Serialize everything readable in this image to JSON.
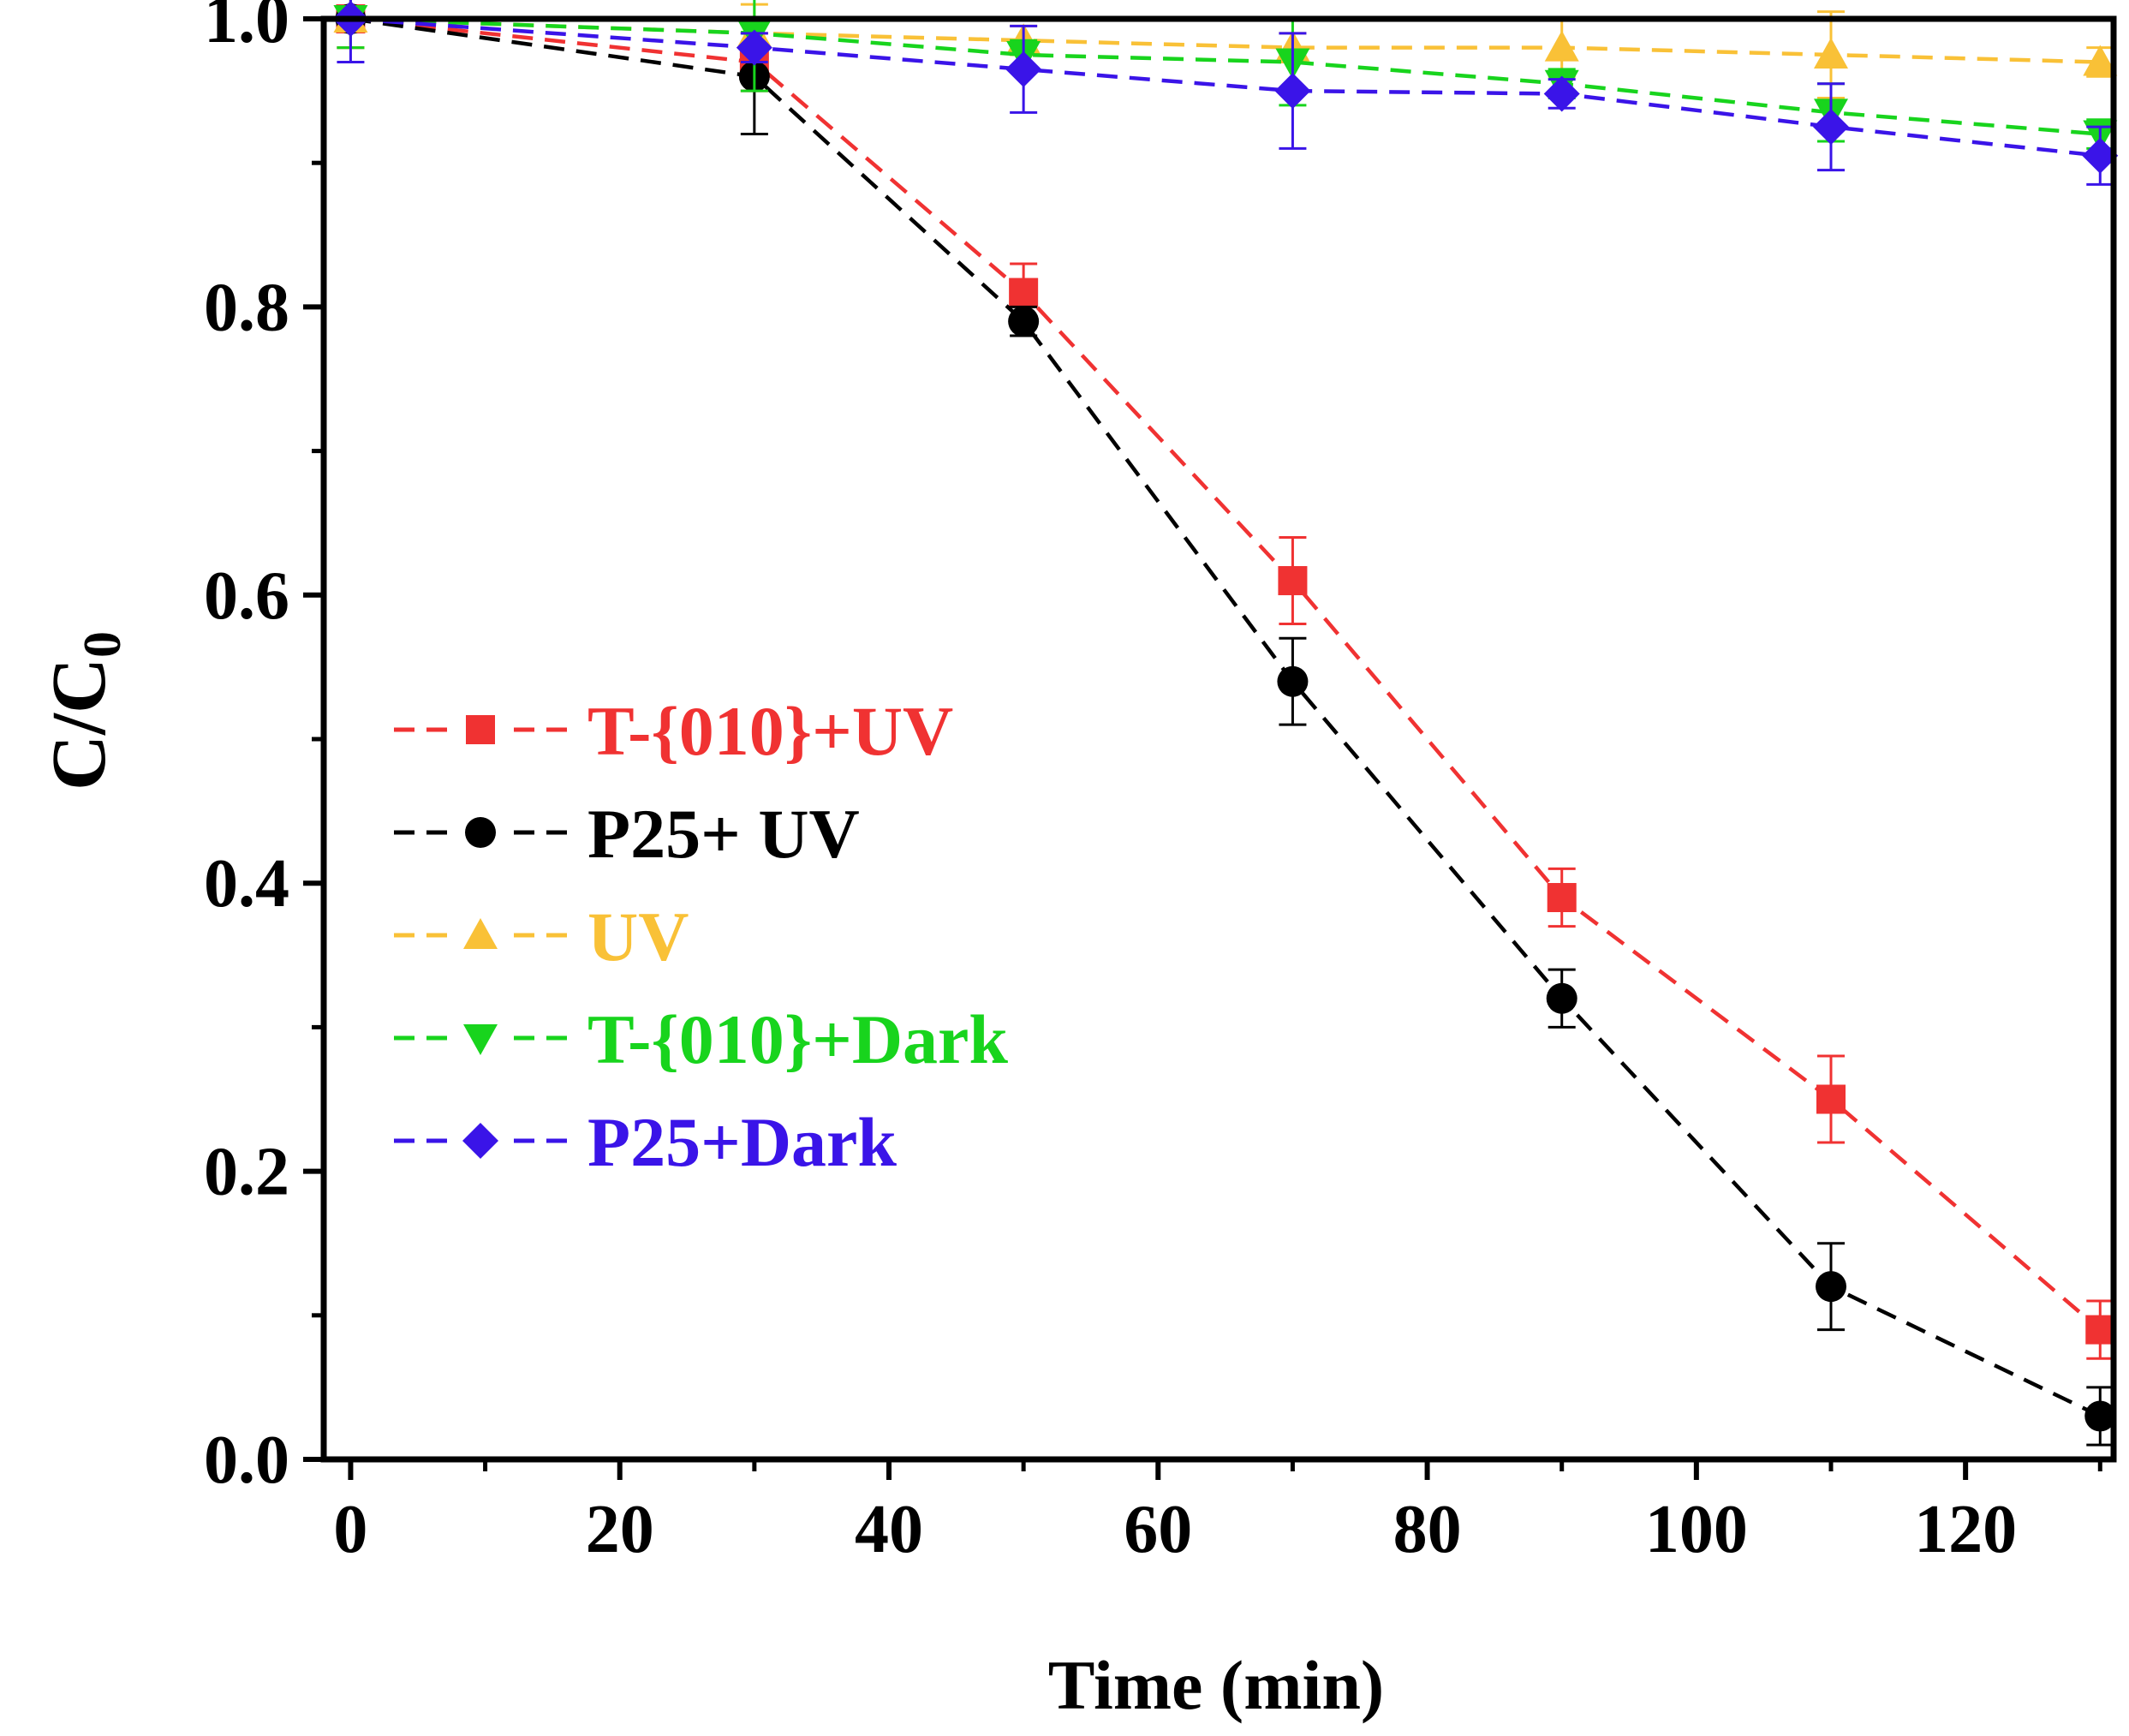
{
  "chart_data": {
    "type": "line",
    "title": "",
    "xlabel": "Time (min)",
    "ylabel_main": "C/C",
    "ylabel_sub": "0",
    "xlim": [
      -2,
      131
    ],
    "ylim": [
      0.0,
      1.0
    ],
    "xticks": [
      0,
      20,
      40,
      60,
      80,
      100,
      120
    ],
    "yticks": [
      0.0,
      0.2,
      0.4,
      0.6,
      0.8,
      1.0
    ],
    "ytick_labels": [
      "0.0",
      "0.2",
      "0.4",
      "0.6",
      "0.8",
      "1.0"
    ],
    "x": [
      0,
      30,
      50,
      70,
      90,
      110,
      130
    ],
    "legend_position": "center-left",
    "series": [
      {
        "name": "T-{010}+UV",
        "color": "#f03232",
        "marker": "square",
        "values": [
          1.0,
          0.97,
          0.81,
          0.61,
          0.39,
          0.25,
          0.09
        ],
        "errors": [
          0.02,
          0.02,
          0.02,
          0.03,
          0.02,
          0.03,
          0.02
        ]
      },
      {
        "name": "P25+ UV",
        "color": "#000000",
        "marker": "circle",
        "values": [
          1.0,
          0.96,
          0.79,
          0.54,
          0.32,
          0.12,
          0.03
        ],
        "errors": [
          0.02,
          0.04,
          0.01,
          0.03,
          0.02,
          0.03,
          0.02
        ]
      },
      {
        "name": "UV",
        "color": "#f9c137",
        "marker": "triangle-up",
        "values": [
          1.0,
          0.99,
          0.985,
          0.98,
          0.98,
          0.975,
          0.97
        ],
        "errors": [
          0.02,
          0.02,
          0.01,
          0.01,
          0.02,
          0.03,
          0.01
        ]
      },
      {
        "name": "T-{010}+Dark",
        "color": "#18d41d",
        "marker": "triangle-down",
        "values": [
          1.0,
          0.99,
          0.975,
          0.97,
          0.955,
          0.935,
          0.92
        ],
        "errors": [
          0.02,
          0.04,
          0.01,
          0.03,
          0.01,
          0.02,
          0.01
        ]
      },
      {
        "name": "P25+Dark",
        "color": "#3a14e8",
        "marker": "diamond",
        "values": [
          1.0,
          0.98,
          0.965,
          0.95,
          0.948,
          0.925,
          0.905
        ],
        "errors": [
          0.03,
          0.01,
          0.03,
          0.04,
          0.01,
          0.03,
          0.02
        ]
      }
    ]
  }
}
